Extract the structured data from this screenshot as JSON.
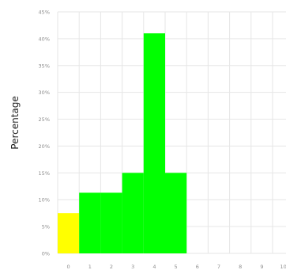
{
  "chart_data": {
    "type": "bar",
    "ylabel": "Percentage",
    "xlabel": "",
    "categories": [
      "0",
      "1",
      "2",
      "3",
      "4",
      "5",
      "6",
      "7",
      "8",
      "9",
      "10"
    ],
    "values": [
      7.5,
      11.3,
      11.3,
      15,
      41,
      15,
      0,
      0,
      0,
      0,
      0
    ],
    "bar_colors": [
      "#ffff00",
      "#00ff00",
      "#00ff00",
      "#00ff00",
      "#00ff00",
      "#00ff00",
      "#00ff00",
      "#00ff00",
      "#00ff00",
      "#00ff00",
      "#00ff00"
    ],
    "ylim": [
      0,
      45
    ],
    "yticks": [
      0,
      5,
      10,
      15,
      20,
      25,
      30,
      35,
      40,
      45
    ],
    "ytick_labels": [
      "0%",
      "5%",
      "10%",
      "15%",
      "20%",
      "25%",
      "30%",
      "35%",
      "40%",
      "45%"
    ],
    "grid": true,
    "legend": false
  }
}
